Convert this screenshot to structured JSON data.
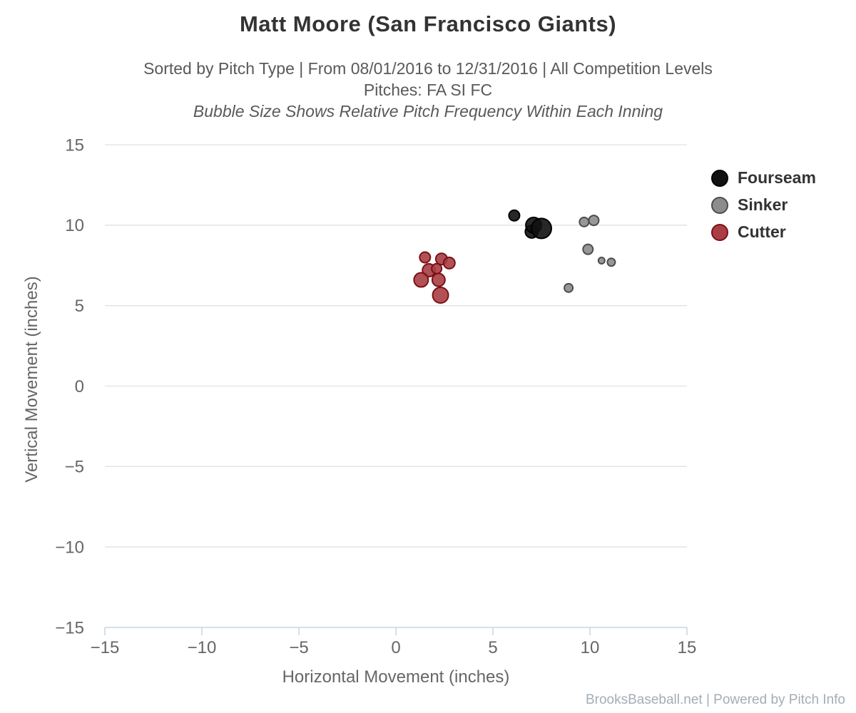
{
  "header": {
    "title": "Matt Moore (San Francisco Giants)",
    "subtitle": "Sorted by Pitch Type | From 08/01/2016 to 12/31/2016 | All Competition Levels",
    "pitches_line": "Pitches: FA SI FC",
    "note_line": "Bubble Size Shows Relative Pitch Frequency Within Each Inning"
  },
  "footer": {
    "credit": "BrooksBaseball.net | Powered by Pitch Info"
  },
  "colors": {
    "title": "#333333",
    "subtitle": "#595959",
    "axis_line": "#c9d6e0",
    "gridline": "#e1e1e1",
    "tick_label": "#666666",
    "axis_title": "#666666",
    "legend_text": "#333333",
    "footer_text": "#a4adb5",
    "background": "#ffffff"
  },
  "chart_data": {
    "type": "scatter",
    "title": "Matt Moore (San Francisco Giants)",
    "subtitle": "Sorted by Pitch Type | From 08/01/2016 to 12/31/2016 | All Competition Levels",
    "note": "Bubble Size Shows Relative Pitch Frequency Within Each Inning",
    "xlabel": "Horizontal Movement (inches)",
    "ylabel": "Vertical Movement (inches)",
    "xlim": [
      -15,
      15
    ],
    "ylim": [
      -15,
      15
    ],
    "xticks": [
      -15,
      -10,
      -5,
      0,
      5,
      10,
      15
    ],
    "yticks": [
      -15,
      -10,
      -5,
      0,
      5,
      10,
      15
    ],
    "grid": "horizontal-only",
    "legend_position": "right",
    "bubble_note": "bubble radius r is in screen px, proportional to relative pitch frequency within each inning",
    "series": [
      {
        "name": "Fourseam",
        "color": "#111111",
        "border": "#000000",
        "points": [
          {
            "x": 6.1,
            "y": 10.6,
            "r": 7.5
          },
          {
            "x": 7.0,
            "y": 9.6,
            "r": 9
          },
          {
            "x": 7.1,
            "y": 10.0,
            "r": 11
          },
          {
            "x": 7.5,
            "y": 9.8,
            "r": 14
          }
        ]
      },
      {
        "name": "Sinker",
        "color": "#8c8c8c",
        "border": "#4d4d4d",
        "points": [
          {
            "x": 9.7,
            "y": 10.2,
            "r": 6.5
          },
          {
            "x": 10.2,
            "y": 10.3,
            "r": 7
          },
          {
            "x": 9.9,
            "y": 8.5,
            "r": 7
          },
          {
            "x": 10.6,
            "y": 7.8,
            "r": 4.5
          },
          {
            "x": 11.1,
            "y": 7.7,
            "r": 5.5
          },
          {
            "x": 8.9,
            "y": 6.1,
            "r": 6
          }
        ]
      },
      {
        "name": "Cutter",
        "color": "#a93e44",
        "border": "#7a1116",
        "points": [
          {
            "x": 1.5,
            "y": 8.0,
            "r": 7.5
          },
          {
            "x": 1.7,
            "y": 7.2,
            "r": 9
          },
          {
            "x": 2.1,
            "y": 7.3,
            "r": 7
          },
          {
            "x": 1.3,
            "y": 6.6,
            "r": 10
          },
          {
            "x": 2.2,
            "y": 6.6,
            "r": 9
          },
          {
            "x": 2.35,
            "y": 7.9,
            "r": 8
          },
          {
            "x": 2.75,
            "y": 7.65,
            "r": 8
          },
          {
            "x": 2.3,
            "y": 5.65,
            "r": 11
          }
        ]
      }
    ]
  }
}
